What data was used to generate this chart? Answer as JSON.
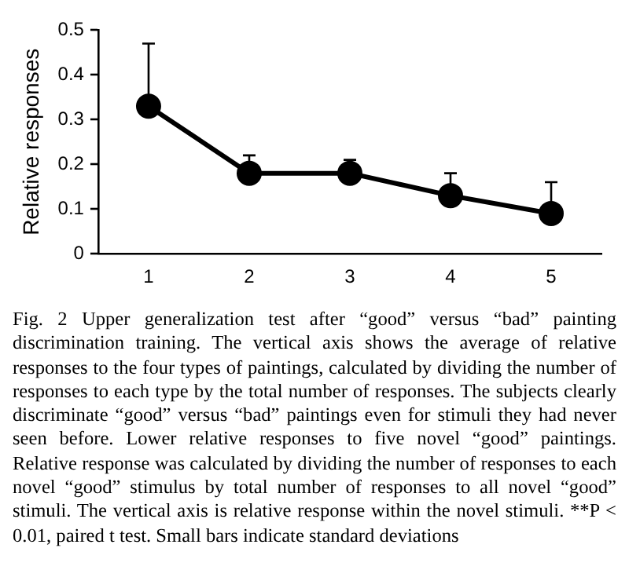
{
  "chart_data": {
    "type": "line",
    "ylabel": "Relative responses",
    "categories": [
      "1",
      "2",
      "3",
      "4",
      "5"
    ],
    "series": [
      {
        "color": "#000000",
        "values": [
          0.33,
          0.18,
          0.18,
          0.13,
          0.09
        ],
        "errors": [
          [
            0.33,
            0.47
          ],
          [
            0.18,
            0.22
          ],
          [
            0.18,
            0.21
          ],
          [
            0.13,
            0.18
          ],
          [
            0.09,
            0.16
          ]
        ]
      }
    ],
    "ylim": [
      0,
      0.5
    ],
    "yticks": [
      0,
      0.1,
      0.2,
      0.3,
      0.4,
      0.5
    ],
    "grid": false,
    "legend": false,
    "marker": "circle",
    "line_style": "solid",
    "annotations": [
      "Fig. 2 Upper generalization test after “good” versus “bad” painting discrimination training. The vertical axis shows the average of relative responses to the four types of paintings, calculated by dividing the number of responses to each type by the total number of responses. The subjects clearly discriminate “good” versus “bad” paintings even for stimuli they had never seen before. Lower relative responses to five novel “good” paintings. Relative response was calculated by dividing the number of responses to each novel “good” stimulus by total number of responses to all novel “good” stimuli. The vertical axis is relative response within the novel stimuli. **P < 0.01, paired t test. Small bars indicate standard deviations"
    ]
  }
}
